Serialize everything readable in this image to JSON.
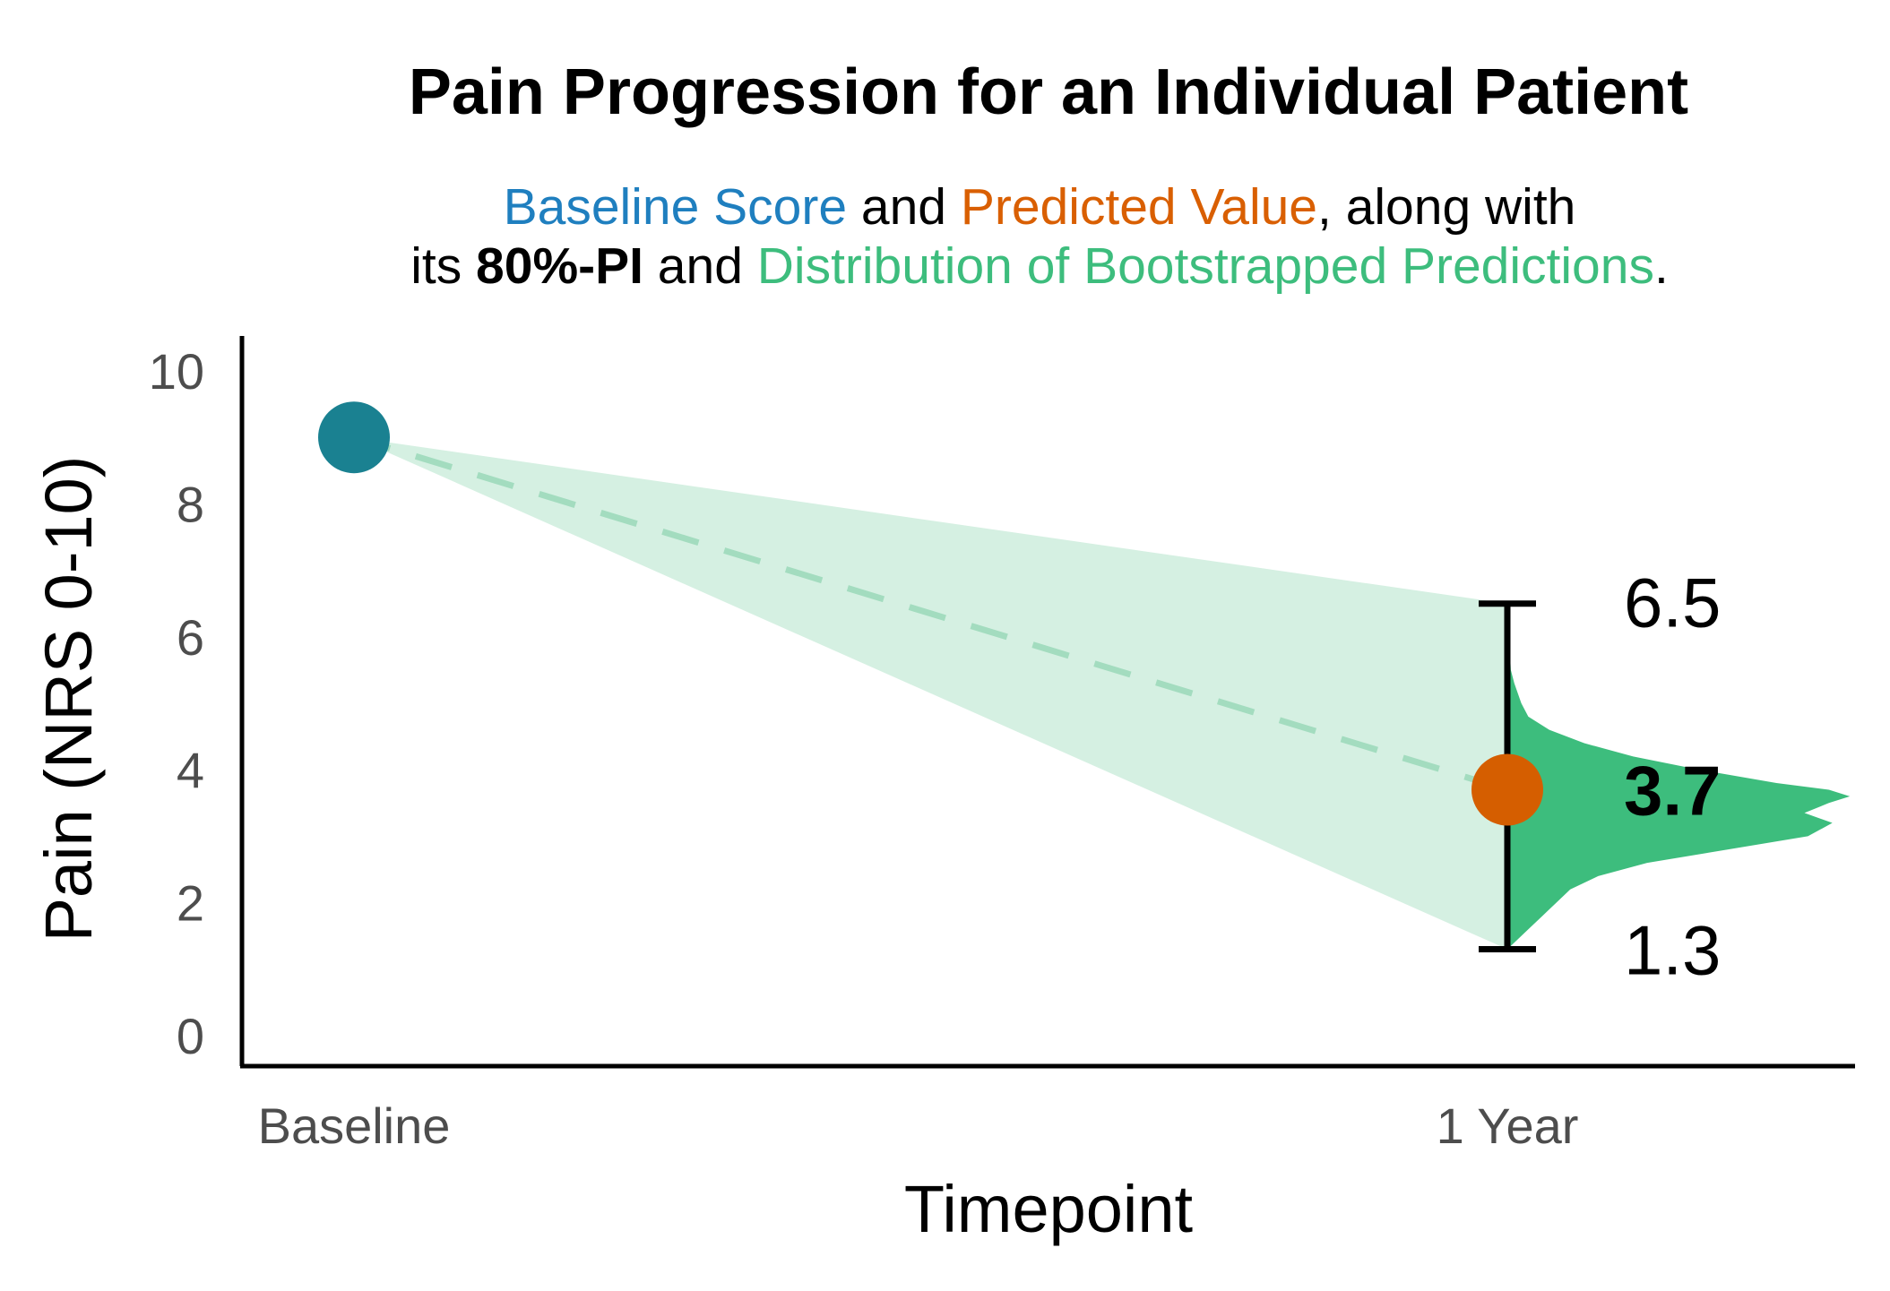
{
  "chart_data": {
    "type": "line",
    "title": "Pain Progression for an Individual Patient",
    "subtitle": {
      "line1": [
        {
          "text": "Baseline Score",
          "color": "#1f7fbf"
        },
        {
          "text": " and ",
          "color": "#000000"
        },
        {
          "text": "Predicted Value",
          "color": "#d95f02"
        },
        {
          "text": ", along with",
          "color": "#000000"
        }
      ],
      "line2": [
        {
          "text": "its ",
          "color": "#000000"
        },
        {
          "text": "80%-PI",
          "color": "#000000",
          "bold": true
        },
        {
          "text": " and ",
          "color": "#000000"
        },
        {
          "text": "Distribution of Bootstrapped Predictions",
          "color": "#3dbd7d"
        },
        {
          "text": ".",
          "color": "#000000"
        }
      ]
    },
    "xlabel": "Timepoint",
    "ylabel": "Pain (NRS 0-10)",
    "categories": [
      "Baseline",
      "1 Year"
    ],
    "ylim": [
      0,
      10.5
    ],
    "yticks": [
      0,
      2,
      4,
      6,
      8,
      10
    ],
    "grid": false,
    "baseline": {
      "x": "Baseline",
      "y": 9.0,
      "color": "#1a8191"
    },
    "prediction": {
      "x": "1 Year",
      "y": 3.7,
      "color": "#d55e00"
    },
    "prediction_interval": {
      "level": "80%",
      "lower": 1.3,
      "upper": 6.5
    },
    "value_labels": {
      "upper": "6.5",
      "predicted": "3.7",
      "lower": "1.3"
    },
    "fan_color": "#d5f0e2",
    "trend_line_color": "#a3dcbf",
    "bootstrap_distribution": {
      "color": "#3dbd7d",
      "density": [
        [
          1.3,
          0.0
        ],
        [
          1.4,
          0.02
        ],
        [
          1.6,
          0.06
        ],
        [
          1.8,
          0.1
        ],
        [
          2.0,
          0.14
        ],
        [
          2.2,
          0.18
        ],
        [
          2.4,
          0.26
        ],
        [
          2.6,
          0.4
        ],
        [
          2.8,
          0.63
        ],
        [
          3.0,
          0.86
        ],
        [
          3.2,
          0.93
        ],
        [
          3.35,
          0.85
        ],
        [
          3.5,
          0.92
        ],
        [
          3.6,
          0.98
        ],
        [
          3.7,
          0.92
        ],
        [
          3.8,
          0.77
        ],
        [
          4.0,
          0.55
        ],
        [
          4.2,
          0.36
        ],
        [
          4.4,
          0.22
        ],
        [
          4.6,
          0.12
        ],
        [
          4.8,
          0.06
        ],
        [
          5.0,
          0.04
        ],
        [
          5.3,
          0.02
        ],
        [
          5.5,
          0.01
        ],
        [
          6.0,
          0.005
        ],
        [
          6.5,
          0.0
        ]
      ]
    }
  }
}
